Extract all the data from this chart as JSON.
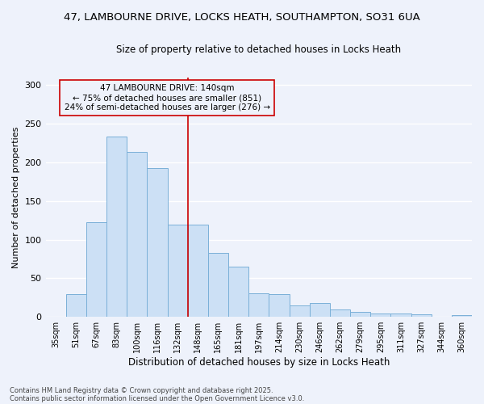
{
  "title1": "47, LAMBOURNE DRIVE, LOCKS HEATH, SOUTHAMPTON, SO31 6UA",
  "title2": "Size of property relative to detached houses in Locks Heath",
  "xlabel": "Distribution of detached houses by size in Locks Heath",
  "ylabel": "Number of detached properties",
  "bar_labels": [
    "35sqm",
    "51sqm",
    "67sqm",
    "83sqm",
    "100sqm",
    "116sqm",
    "132sqm",
    "148sqm",
    "165sqm",
    "181sqm",
    "197sqm",
    "214sqm",
    "230sqm",
    "246sqm",
    "262sqm",
    "279sqm",
    "295sqm",
    "311sqm",
    "327sqm",
    "344sqm",
    "360sqm"
  ],
  "bar_values": [
    0,
    29,
    123,
    233,
    213,
    193,
    119,
    119,
    83,
    65,
    31,
    30,
    15,
    18,
    10,
    6,
    4,
    4,
    3,
    0,
    2
  ],
  "bar_color": "#cce0f5",
  "bar_edge_color": "#7ab0d8",
  "vline_x_index": 6.5,
  "vline_color": "#cc0000",
  "annotation_text": "47 LAMBOURNE DRIVE: 140sqm\n← 75% of detached houses are smaller (851)\n24% of semi-detached houses are larger (276) →",
  "annotation_box_color": "#cc0000",
  "ylim": [
    0,
    310
  ],
  "yticks": [
    0,
    50,
    100,
    150,
    200,
    250,
    300
  ],
  "footer1": "Contains HM Land Registry data © Crown copyright and database right 2025.",
  "footer2": "Contains public sector information licensed under the Open Government Licence v3.0.",
  "bg_color": "#eef2fb",
  "grid_color": "#ffffff",
  "title_fontsize": 9.5,
  "subtitle_fontsize": 8.5,
  "ann_fontsize": 7.5,
  "ylabel_fontsize": 8,
  "xlabel_fontsize": 8.5
}
